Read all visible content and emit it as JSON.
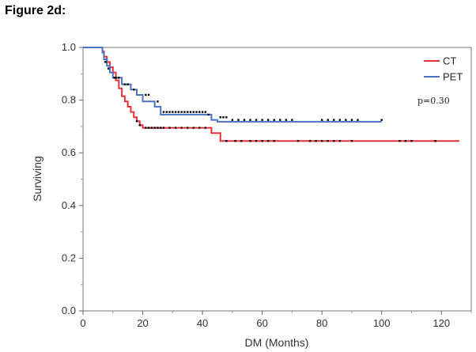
{
  "figure_label": "Figure 2d:",
  "chart_data": {
    "type": "line",
    "title": "",
    "xlabel": "DM (Months)",
    "ylabel": "Surviving",
    "xlim": [
      0,
      130
    ],
    "ylim": [
      0,
      1.0
    ],
    "x_ticks": [
      0,
      20,
      40,
      60,
      80,
      100,
      120
    ],
    "y_ticks": [
      0.0,
      0.2,
      0.4,
      0.6,
      0.8,
      1.0
    ],
    "x_tick_labels": [
      "0",
      "20",
      "40",
      "60",
      "80",
      "100",
      "120"
    ],
    "y_tick_labels": [
      "0.0",
      "0.2",
      "0.4",
      "0.6",
      "0.8",
      "1.0"
    ],
    "grid": false,
    "legend_position": "top-right",
    "annotation": "p=0.30",
    "series": [
      {
        "name": "CT",
        "color": "#e8303a",
        "steps": [
          [
            0,
            1.0
          ],
          [
            6,
            1.0
          ],
          [
            6.5,
            0.985
          ],
          [
            7,
            0.965
          ],
          [
            8,
            0.945
          ],
          [
            9,
            0.925
          ],
          [
            10,
            0.905
          ],
          [
            11,
            0.875
          ],
          [
            12,
            0.845
          ],
          [
            13,
            0.815
          ],
          [
            14,
            0.795
          ],
          [
            15,
            0.775
          ],
          [
            16,
            0.755
          ],
          [
            17,
            0.735
          ],
          [
            18,
            0.72
          ],
          [
            19,
            0.705
          ],
          [
            20,
            0.695
          ],
          [
            43,
            0.695
          ],
          [
            43,
            0.675
          ],
          [
            46,
            0.675
          ],
          [
            46,
            0.645
          ],
          [
            126,
            0.645
          ]
        ],
        "censored": [
          [
            18,
            0.72
          ],
          [
            19,
            0.705
          ],
          [
            21,
            0.695
          ],
          [
            22,
            0.695
          ],
          [
            23,
            0.695
          ],
          [
            24,
            0.695
          ],
          [
            25,
            0.695
          ],
          [
            26,
            0.695
          ],
          [
            27,
            0.695
          ],
          [
            29,
            0.695
          ],
          [
            31,
            0.695
          ],
          [
            33,
            0.695
          ],
          [
            35,
            0.695
          ],
          [
            37,
            0.695
          ],
          [
            39,
            0.695
          ],
          [
            41,
            0.695
          ],
          [
            48,
            0.645
          ],
          [
            51,
            0.645
          ],
          [
            53,
            0.645
          ],
          [
            56,
            0.645
          ],
          [
            58,
            0.645
          ],
          [
            60,
            0.645
          ],
          [
            62,
            0.645
          ],
          [
            64,
            0.645
          ],
          [
            72,
            0.645
          ],
          [
            76,
            0.645
          ],
          [
            78,
            0.645
          ],
          [
            80,
            0.645
          ],
          [
            82,
            0.645
          ],
          [
            84,
            0.645
          ],
          [
            86,
            0.645
          ],
          [
            90,
            0.645
          ],
          [
            106,
            0.645
          ],
          [
            108,
            0.645
          ],
          [
            110,
            0.645
          ],
          [
            118,
            0.645
          ]
        ]
      },
      {
        "name": "PET",
        "color": "#4a72c4",
        "steps": [
          [
            0,
            1.0
          ],
          [
            6,
            1.0
          ],
          [
            6.5,
            0.98
          ],
          [
            7,
            0.955
          ],
          [
            8,
            0.93
          ],
          [
            9,
            0.905
          ],
          [
            10,
            0.885
          ],
          [
            13,
            0.885
          ],
          [
            13,
            0.86
          ],
          [
            16,
            0.86
          ],
          [
            16,
            0.84
          ],
          [
            18,
            0.84
          ],
          [
            18,
            0.82
          ],
          [
            20,
            0.82
          ],
          [
            20,
            0.795
          ],
          [
            24,
            0.795
          ],
          [
            24,
            0.775
          ],
          [
            26,
            0.775
          ],
          [
            26,
            0.745
          ],
          [
            43,
            0.745
          ],
          [
            43,
            0.725
          ],
          [
            45,
            0.725
          ],
          [
            45,
            0.718
          ],
          [
            100,
            0.718
          ]
        ],
        "censored": [
          [
            7.5,
            0.945
          ],
          [
            8.5,
            0.92
          ],
          [
            10.5,
            0.885
          ],
          [
            11,
            0.885
          ],
          [
            12,
            0.885
          ],
          [
            14,
            0.86
          ],
          [
            15,
            0.86
          ],
          [
            17,
            0.84
          ],
          [
            21,
            0.82
          ],
          [
            22,
            0.82
          ],
          [
            25,
            0.795
          ],
          [
            27,
            0.755
          ],
          [
            28,
            0.755
          ],
          [
            29,
            0.755
          ],
          [
            30,
            0.755
          ],
          [
            31,
            0.755
          ],
          [
            32,
            0.755
          ],
          [
            33,
            0.755
          ],
          [
            34,
            0.755
          ],
          [
            35,
            0.755
          ],
          [
            36,
            0.755
          ],
          [
            37,
            0.755
          ],
          [
            38,
            0.755
          ],
          [
            39,
            0.755
          ],
          [
            40,
            0.755
          ],
          [
            41,
            0.755
          ],
          [
            42,
            0.745
          ],
          [
            46,
            0.735
          ],
          [
            47,
            0.735
          ],
          [
            48,
            0.735
          ],
          [
            50,
            0.725
          ],
          [
            52,
            0.725
          ],
          [
            54,
            0.725
          ],
          [
            56,
            0.725
          ],
          [
            58,
            0.725
          ],
          [
            60,
            0.725
          ],
          [
            62,
            0.725
          ],
          [
            64,
            0.725
          ],
          [
            66,
            0.725
          ],
          [
            68,
            0.725
          ],
          [
            70,
            0.725
          ],
          [
            80,
            0.725
          ],
          [
            82,
            0.725
          ],
          [
            84,
            0.725
          ],
          [
            86,
            0.725
          ],
          [
            88,
            0.725
          ],
          [
            90,
            0.725
          ],
          [
            92,
            0.725
          ],
          [
            100,
            0.725
          ]
        ]
      }
    ]
  }
}
